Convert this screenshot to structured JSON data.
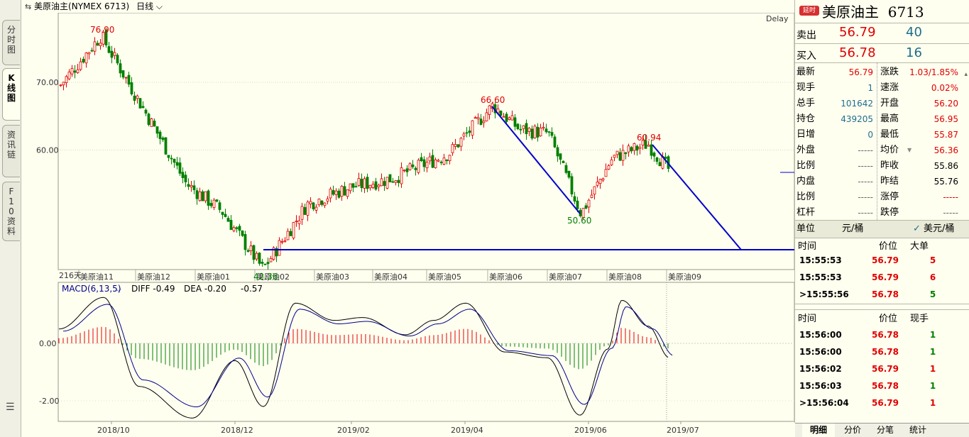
{
  "header": {
    "title": "美原油主(NYMEX 6713)",
    "period": "日线"
  },
  "left_tabs": [
    {
      "label": "分时图"
    },
    {
      "label": "K线图"
    },
    {
      "label": "资讯链"
    },
    {
      "label": "F10资料"
    }
  ],
  "chart": {
    "delay_label": "Delay",
    "y_ticks": [
      "70.00",
      "60.00"
    ],
    "month_labels": [
      "美原油11",
      "美原油12",
      "美原油01",
      "美原油02",
      "美原油03",
      "美原油04",
      "美原油05",
      "美原油06",
      "美原油07",
      "美原油08",
      "美原油09"
    ],
    "left_marker": "216天",
    "annotations": [
      {
        "text": "76.90",
        "color": "#E00000"
      },
      {
        "text": "66.60",
        "color": "#E00000"
      },
      {
        "text": "60.94",
        "color": "#E00000"
      },
      {
        "text": "50.60",
        "color": "#008000"
      },
      {
        "text": "42.36",
        "color": "#008000"
      }
    ],
    "macd_label": "MACD(6,13,5)",
    "diff_label": "DIFF -0.49",
    "dea_label": "DEA -0.20",
    "macd_value": "-0.57",
    "macd_ticks": [
      "0.00",
      "-2.00"
    ],
    "x_dates": [
      "2018/10",
      "2018/12",
      "2019/02",
      "2019/04",
      "2019/06",
      "2019/07"
    ]
  },
  "quote": {
    "badge": "延时",
    "name": "美原油主",
    "code": "6713",
    "sell": {
      "label": "卖出",
      "price": "56.79",
      "vol": "40"
    },
    "buy": {
      "label": "买入",
      "price": "56.78",
      "vol": "16"
    },
    "left_stats": [
      {
        "label": "最新",
        "value": "56.79",
        "color": "red"
      },
      {
        "label": "现手",
        "value": "1",
        "color": "teal"
      },
      {
        "label": "总手",
        "value": "101642",
        "color": "teal"
      },
      {
        "label": "持仓",
        "value": "439205",
        "color": "teal"
      },
      {
        "label": "日增",
        "value": "0",
        "color": "teal"
      },
      {
        "label": "外盘",
        "value": "-----",
        "color": "dash"
      },
      {
        "label": "比例",
        "value": "-----",
        "color": "dash"
      },
      {
        "label": "内盘",
        "value": "-----",
        "color": "dash"
      },
      {
        "label": "比例",
        "value": "-----",
        "color": "dash"
      },
      {
        "label": "杠杆",
        "value": "-----",
        "color": "dash"
      }
    ],
    "right_stats": [
      {
        "label": "涨跌",
        "value": "1.03/1.85%",
        "color": "red"
      },
      {
        "label": "速涨",
        "value": "0.02%",
        "color": "red"
      },
      {
        "label": "开盘",
        "value": "56.20",
        "color": "red"
      },
      {
        "label": "最高",
        "value": "56.95",
        "color": "red"
      },
      {
        "label": "最低",
        "value": "55.87",
        "color": "red"
      },
      {
        "label": "均价",
        "value": "56.36",
        "color": "red"
      },
      {
        "label": "昨收",
        "value": "55.86",
        "color": "black"
      },
      {
        "label": "昨结",
        "value": "55.76",
        "color": "black"
      },
      {
        "label": "涨停",
        "value": "-----",
        "color": "red"
      },
      {
        "label": "跌停",
        "value": "-----",
        "color": "dash"
      }
    ],
    "unit_label": "单位",
    "unit_value": "元/桶",
    "unit_alt": "美元/桶",
    "big_orders": {
      "headers": [
        "时间",
        "价位",
        "大单"
      ],
      "rows": [
        {
          "time": "15:55:53",
          "price": "56.79",
          "qty": "5",
          "color": "red"
        },
        {
          "time": "15:55:53",
          "price": "56.79",
          "qty": "6",
          "color": "red"
        },
        {
          "time": ">15:55:56",
          "price": "56.78",
          "qty": "5",
          "color": "green"
        }
      ]
    },
    "ticks": {
      "headers": [
        "时间",
        "价位",
        "现手"
      ],
      "rows": [
        {
          "time": "15:56:00",
          "price": "56.78",
          "qty": "1",
          "color": "green"
        },
        {
          "time": "15:56:00",
          "price": "56.78",
          "qty": "1",
          "color": "green"
        },
        {
          "time": "15:56:02",
          "price": "56.79",
          "qty": "1",
          "color": "red"
        },
        {
          "time": "15:56:03",
          "price": "56.78",
          "qty": "1",
          "color": "green"
        },
        {
          "time": ">15:56:04",
          "price": "56.79",
          "qty": "1",
          "color": "red"
        }
      ]
    }
  },
  "bottom_tabs": [
    {
      "label": "明细"
    },
    {
      "label": "分价"
    },
    {
      "label": "分笔"
    },
    {
      "label": "统计"
    }
  ],
  "colors": {
    "up": "#E00000",
    "down": "#008000",
    "trendline": "#0000CC"
  }
}
